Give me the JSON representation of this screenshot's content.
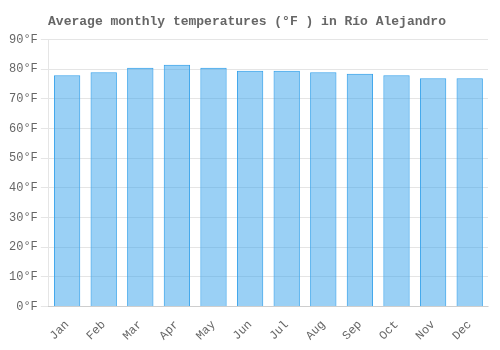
{
  "chart_data": {
    "type": "bar",
    "title": "Average monthly temperatures (°F ) in Río Alejandro",
    "categories": [
      "Jan",
      "Feb",
      "Mar",
      "Apr",
      "May",
      "Jun",
      "Jul",
      "Aug",
      "Sep",
      "Oct",
      "Nov",
      "Dec"
    ],
    "values": [
      78,
      79,
      80.5,
      81.5,
      80.5,
      79.5,
      79.5,
      79,
      78.5,
      78,
      77,
      77
    ],
    "ylim": [
      0,
      90
    ],
    "yticks": [
      {
        "value": 0,
        "label": "0°F"
      },
      {
        "value": 10,
        "label": "10°F"
      },
      {
        "value": 20,
        "label": "20°F"
      },
      {
        "value": 30,
        "label": "30°F"
      },
      {
        "value": 40,
        "label": "40°F"
      },
      {
        "value": 50,
        "label": "50°F"
      },
      {
        "value": 60,
        "label": "60°F"
      },
      {
        "value": 70,
        "label": "70°F"
      },
      {
        "value": 80,
        "label": "80°F"
      },
      {
        "value": 90,
        "label": "90°F"
      }
    ],
    "grid": true
  }
}
